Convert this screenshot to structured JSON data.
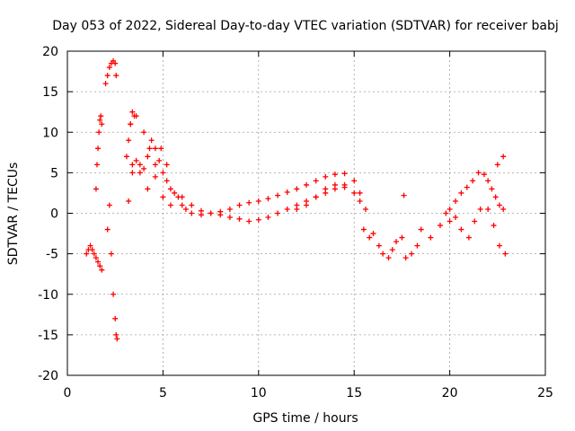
{
  "chart_data": {
    "type": "scatter",
    "title": "Day 053 of 2022, Sidereal Day-to-day VTEC variation (SDTVAR) for receiver babj",
    "xlabel": "GPS time / hours",
    "ylabel": "SDTVAR / TECUs",
    "xlim": [
      0,
      25
    ],
    "ylim": [
      -20,
      20
    ],
    "xticks": [
      0,
      5,
      10,
      15,
      20,
      25
    ],
    "yticks": [
      -20,
      -15,
      -10,
      -5,
      0,
      5,
      10,
      15,
      20
    ],
    "grid": true,
    "marker": "+",
    "color": "#ff0000",
    "series": [
      {
        "name": "SDTVAR",
        "x": [
          1.0,
          1.1,
          1.2,
          1.3,
          1.4,
          1.5,
          1.6,
          1.7,
          1.8,
          1.5,
          1.55,
          1.6,
          1.65,
          1.7,
          1.75,
          1.8,
          2.0,
          2.1,
          2.2,
          2.3,
          2.4,
          2.5,
          2.55,
          2.1,
          2.2,
          2.3,
          2.4,
          2.5,
          2.55,
          2.6,
          3.1,
          3.2,
          3.3,
          3.4,
          3.5,
          3.2,
          3.4,
          3.6,
          3.8,
          4.0,
          4.2,
          4.4,
          4.6,
          4.8,
          5.0,
          5.2,
          5.4,
          5.6,
          5.8,
          6.0,
          6.2,
          6.5,
          7.0,
          7.5,
          8.0,
          8.5,
          9.0,
          9.5,
          10.0,
          10.5,
          11.0,
          11.5,
          12.0,
          12.5,
          13.0,
          13.5,
          14.0,
          14.5,
          15.0,
          15.3,
          15.6,
          6.0,
          6.5,
          7.0,
          7.5,
          8.0,
          8.5,
          9.0,
          9.5,
          10.0,
          10.5,
          11.0,
          11.5,
          12.0,
          12.5,
          13.0,
          13.5,
          14.0,
          14.5,
          15.0,
          15.3,
          15.5,
          15.8,
          16.0,
          16.3,
          16.5,
          16.8,
          17.0,
          17.2,
          17.5,
          17.7,
          18.0,
          18.3,
          18.5,
          19.0,
          19.5,
          19.8,
          20.0,
          20.3,
          20.6,
          20.9,
          21.2,
          21.5,
          21.8,
          22.0,
          22.2,
          22.4,
          22.6,
          22.8,
          20.0,
          20.3,
          20.6,
          21.0,
          21.3,
          21.6,
          22.0,
          22.3,
          22.6,
          22.9,
          3.3,
          3.6,
          4.0,
          4.3,
          4.6,
          4.9,
          5.2,
          3.4,
          3.8,
          4.2,
          4.6,
          5.0,
          5.4,
          12.0,
          12.5,
          13.0,
          13.5,
          14.0,
          14.5,
          17.6,
          22.5,
          22.8
        ],
        "y": [
          -5.0,
          -4.5,
          -4.0,
          -4.5,
          -5.0,
          -5.5,
          -6.0,
          -6.5,
          -7.0,
          3.0,
          6.0,
          8.0,
          10.0,
          11.5,
          12.0,
          11.0,
          16.0,
          17.0,
          18.0,
          18.5,
          18.8,
          18.5,
          17.0,
          -2.0,
          1.0,
          -5.0,
          -10.0,
          -13.0,
          -15.0,
          -15.5,
          7.0,
          9.0,
          11.0,
          12.5,
          12.0,
          1.5,
          6.0,
          6.5,
          6.0,
          5.5,
          7.0,
          9.0,
          8.0,
          6.5,
          5.0,
          4.0,
          3.0,
          2.5,
          2.0,
          1.0,
          0.5,
          0.0,
          -0.2,
          0.0,
          0.2,
          0.5,
          1.0,
          1.3,
          1.5,
          1.8,
          2.2,
          2.6,
          3.0,
          3.5,
          4.0,
          4.5,
          4.8,
          4.9,
          4.0,
          2.5,
          0.5,
          2.0,
          1.0,
          0.3,
          0.0,
          -0.2,
          -0.5,
          -0.7,
          -1.0,
          -0.8,
          -0.5,
          0.0,
          0.5,
          1.0,
          1.5,
          2.0,
          2.5,
          3.0,
          3.2,
          2.5,
          1.5,
          -2.0,
          -3.0,
          -2.5,
          -4.0,
          -5.0,
          -5.5,
          -4.5,
          -3.5,
          -3.0,
          -5.5,
          -5.0,
          -4.0,
          -2.0,
          -3.0,
          -1.5,
          0.0,
          0.5,
          1.5,
          2.5,
          3.2,
          4.0,
          5.0,
          4.8,
          4.0,
          3.0,
          2.0,
          1.0,
          0.5,
          -1.0,
          -0.5,
          -2.0,
          -3.0,
          -1.0,
          0.5,
          0.5,
          -1.5,
          -4.0,
          -5.0,
          11.0,
          12.0,
          10.0,
          8.0,
          6.0,
          8.0,
          6.0,
          5.0,
          5.0,
          3.0,
          4.5,
          2.0,
          1.0,
          0.5,
          1.0,
          2.0,
          3.0,
          3.5,
          3.5,
          2.2,
          6.0,
          7.0
        ]
      }
    ]
  }
}
